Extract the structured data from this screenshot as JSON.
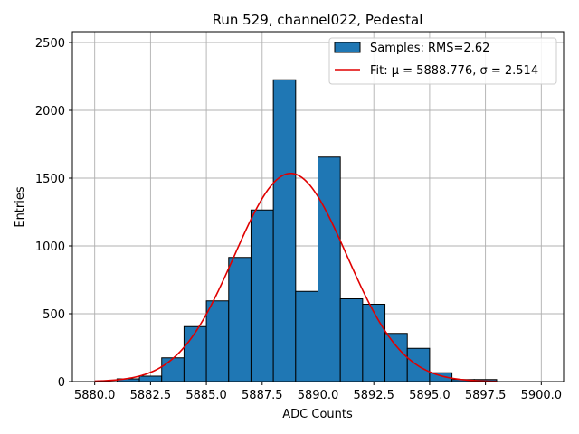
{
  "chart_data": {
    "type": "bar",
    "title": "Run 529, channel022, Pedestal",
    "xlabel": "ADC Counts",
    "ylabel": "Entries",
    "xlim": [
      5879.0,
      5901.0
    ],
    "ylim": [
      0,
      2580
    ],
    "grid": true,
    "legend_placement": "top-right",
    "bar_color": "#1f77b4",
    "fit_color": "#e00000",
    "x_ticks": [
      5880.0,
      5882.5,
      5885.0,
      5887.5,
      5890.0,
      5892.5,
      5895.0,
      5897.5,
      5900.0
    ],
    "x_tick_labels": [
      "5880.0",
      "5882.5",
      "5885.0",
      "5887.5",
      "5890.0",
      "5892.5",
      "5895.0",
      "5897.5",
      "5900.0"
    ],
    "y_ticks": [
      0,
      500,
      1000,
      1500,
      2000,
      2500
    ],
    "y_tick_labels": [
      "0",
      "500",
      "1000",
      "1500",
      "2000",
      "2500"
    ],
    "bins": [
      {
        "x0": 5881.0,
        "x1": 5882.0,
        "value": 20
      },
      {
        "x0": 5882.0,
        "x1": 5883.0,
        "value": 40
      },
      {
        "x0": 5883.0,
        "x1": 5884.0,
        "value": 175
      },
      {
        "x0": 5884.0,
        "x1": 5885.0,
        "value": 405
      },
      {
        "x0": 5885.0,
        "x1": 5886.0,
        "value": 595
      },
      {
        "x0": 5886.0,
        "x1": 5887.0,
        "value": 915
      },
      {
        "x0": 5887.0,
        "x1": 5888.0,
        "value": 1265
      },
      {
        "x0": 5888.0,
        "x1": 5889.0,
        "value": 2225
      },
      {
        "x0": 5889.0,
        "x1": 5890.0,
        "value": 665
      },
      {
        "x0": 5890.0,
        "x1": 5891.0,
        "value": 1655
      },
      {
        "x0": 5891.0,
        "x1": 5892.0,
        "value": 610
      },
      {
        "x0": 5892.0,
        "x1": 5893.0,
        "value": 570
      },
      {
        "x0": 5893.0,
        "x1": 5894.0,
        "value": 355
      },
      {
        "x0": 5894.0,
        "x1": 5895.0,
        "value": 245
      },
      {
        "x0": 5895.0,
        "x1": 5896.0,
        "value": 65
      },
      {
        "x0": 5896.0,
        "x1": 5897.0,
        "value": 15
      },
      {
        "x0": 5897.0,
        "x1": 5898.0,
        "value": 15
      }
    ],
    "fit": {
      "mu": 5888.776,
      "sigma": 2.514,
      "amplitude": 1535,
      "x_range": [
        5880.0,
        5898.0
      ]
    },
    "legend": [
      {
        "kind": "patch",
        "label": "Samples: RMS=2.62"
      },
      {
        "kind": "line",
        "label": "Fit: μ = 5888.776, σ = 2.514"
      }
    ]
  }
}
